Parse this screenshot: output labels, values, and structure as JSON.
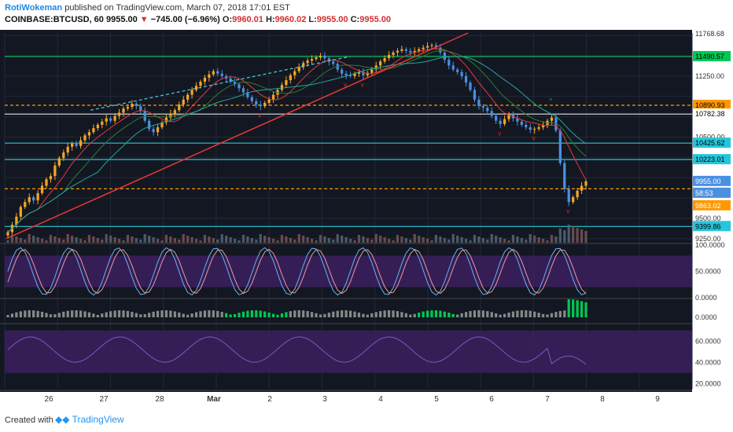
{
  "header": {
    "author": "RotiWokeman",
    "published_text": "published on TradingView.com, March 07, 2018 17:01 EST",
    "symbol": "COINBASE:BTCUSD, 60",
    "last": "9955.00",
    "arrow": "▼",
    "change": "−745.00 (−6.96%)",
    "o_label": "O:",
    "o": "9960.01",
    "h_label": "H:",
    "h": "9960.02",
    "l_label": "L:",
    "l": "9955.00",
    "c_label": "C:",
    "c": "9955.00"
  },
  "footer": {
    "created": "Created with",
    "brand": "TradingView"
  },
  "colors": {
    "bg": "#131722",
    "up": "#f5a623",
    "down": "#4a90e2",
    "green": "#00c853",
    "orange": "#ff9800",
    "cyan": "#26c6da",
    "red": "#d32f2f",
    "purple": "#3a1f5c"
  },
  "chart_data": [
    {
      "type": "candlestick",
      "title": "",
      "price_axis_ticks": [
        "11768.68",
        "11490.57",
        "11250.00",
        "10890.93",
        "10782.38",
        "10500.00",
        "10425.62",
        "10223.01",
        "9955.00",
        "58:53",
        "9863.02",
        "9500.00",
        "9399.86",
        "9250.00"
      ],
      "time_axis_ticks": [
        "26",
        "27",
        "28",
        "Mar",
        "2",
        "3",
        "4",
        "5",
        "6",
        "7",
        "8",
        "9"
      ],
      "ylim": [
        9200,
        11780
      ],
      "horizontal_levels": [
        {
          "value": 11490.57,
          "color": "green",
          "style": "solid"
        },
        {
          "value": 10890.93,
          "color": "orange",
          "style": "dashed"
        },
        {
          "value": 10782.38,
          "color": "white",
          "style": "solid"
        },
        {
          "value": 10425.62,
          "color": "cyan",
          "style": "solid"
        },
        {
          "value": 10223.01,
          "color": "cyan",
          "style": "solid"
        },
        {
          "value": 9863.02,
          "color": "orange",
          "style": "dashed"
        },
        {
          "value": 9399.86,
          "color": "cyan",
          "style": "solid"
        }
      ],
      "close_series": [
        9330,
        9420,
        9520,
        9640,
        9700,
        9760,
        9720,
        9810,
        9900,
        9980,
        10020,
        10150,
        10240,
        10310,
        10380,
        10420,
        10390,
        10460,
        10520,
        10560,
        10610,
        10650,
        10690,
        10730,
        10700,
        10760,
        10800,
        10850,
        10870,
        10910,
        10880,
        10820,
        10700,
        10600,
        10560,
        10620,
        10680,
        10740,
        10790,
        10830,
        10900,
        10960,
        11020,
        11080,
        11130,
        11180,
        11230,
        11270,
        11310,
        11280,
        11250,
        11220,
        11180,
        11150,
        11100,
        11050,
        10990,
        10940,
        10900,
        10880,
        10920,
        10960,
        11020,
        11080,
        11140,
        11200,
        11260,
        11310,
        11360,
        11410,
        11440,
        11460,
        11480,
        11500,
        11470,
        11430,
        11400,
        11330,
        11280,
        11260,
        11250,
        11280,
        11300,
        11260,
        11290,
        11330,
        11380,
        11430,
        11470,
        11510,
        11540,
        11560,
        11580,
        11560,
        11540,
        11560,
        11580,
        11600,
        11620,
        11630,
        11600,
        11540,
        11450,
        11380,
        11330,
        11300,
        11250,
        11170,
        11080,
        10960,
        10880,
        10860,
        10820,
        10760,
        10700,
        10660,
        10720,
        10780,
        10730,
        10690,
        10650,
        10620,
        10590,
        10600,
        10620,
        10650,
        10700,
        10740,
        10580,
        10180,
        9860,
        9700,
        9760,
        9840,
        9900,
        9955
      ],
      "indicators": [
        {
          "name": "Stochastic RSI",
          "axis_ticks": [
            "100.0000",
            "50.0000",
            "0.0000"
          ]
        },
        {
          "name": "Histogram",
          "axis_ticks": [
            "0.0000"
          ]
        },
        {
          "name": "RSI",
          "axis_ticks": [
            "60.0000",
            "40.0000",
            "20.0000"
          ]
        }
      ]
    }
  ]
}
